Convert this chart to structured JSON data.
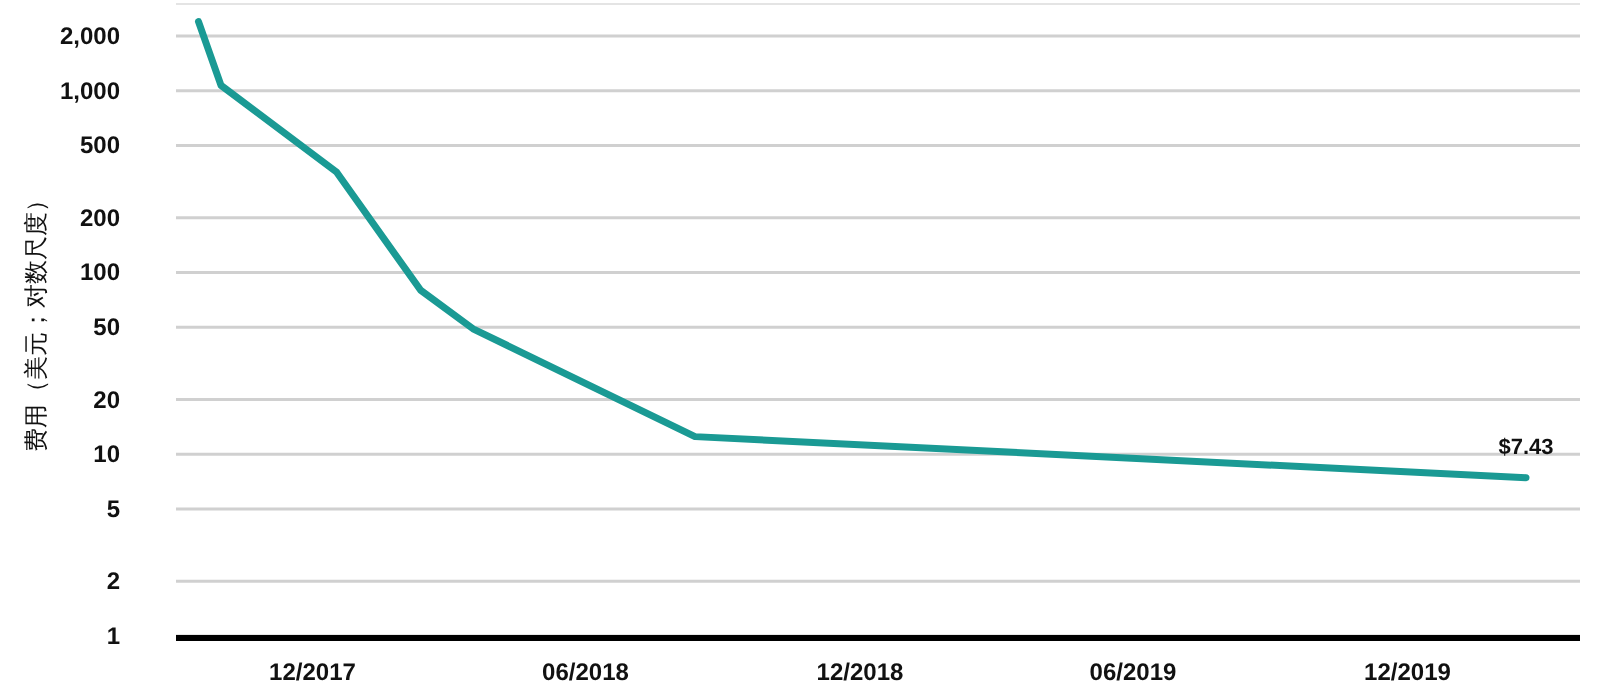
{
  "chart_data": {
    "type": "line",
    "ylabel": "费用（美元；对数尺度）",
    "log": "y",
    "grid": "y",
    "xlim": [
      "2017-09-01",
      "2020-03-25"
    ],
    "xticks": [
      {
        "value": "2017-12-01",
        "label": "12/2017"
      },
      {
        "value": "2018-06-01",
        "label": "06/2018"
      },
      {
        "value": "2018-12-01",
        "label": "12/2018"
      },
      {
        "value": "2019-06-01",
        "label": "06/2019"
      },
      {
        "value": "2019-12-01",
        "label": "12/2019"
      }
    ],
    "ylim": [
      1,
      3000
    ],
    "yticks": [
      1,
      2,
      5,
      10,
      20,
      50,
      100,
      200,
      500,
      {
        "value": 1000,
        "label": "1,000"
      },
      {
        "value": 2000,
        "label": "2,000"
      }
    ],
    "series": [
      {
        "color": "#1a9a94",
        "x": [
          "2017-09-16",
          "2017-10-01",
          "2017-12-17",
          "2018-02-11",
          "2018-03-18",
          "2018-08-13",
          "2020-02-18"
        ],
        "values": [
          2400,
          1070,
          357,
          80,
          49,
          12.5,
          7.43
        ]
      }
    ],
    "annotations": [
      {
        "text": "$7.43",
        "x": "2020-02-18",
        "y": 7.43
      }
    ]
  }
}
